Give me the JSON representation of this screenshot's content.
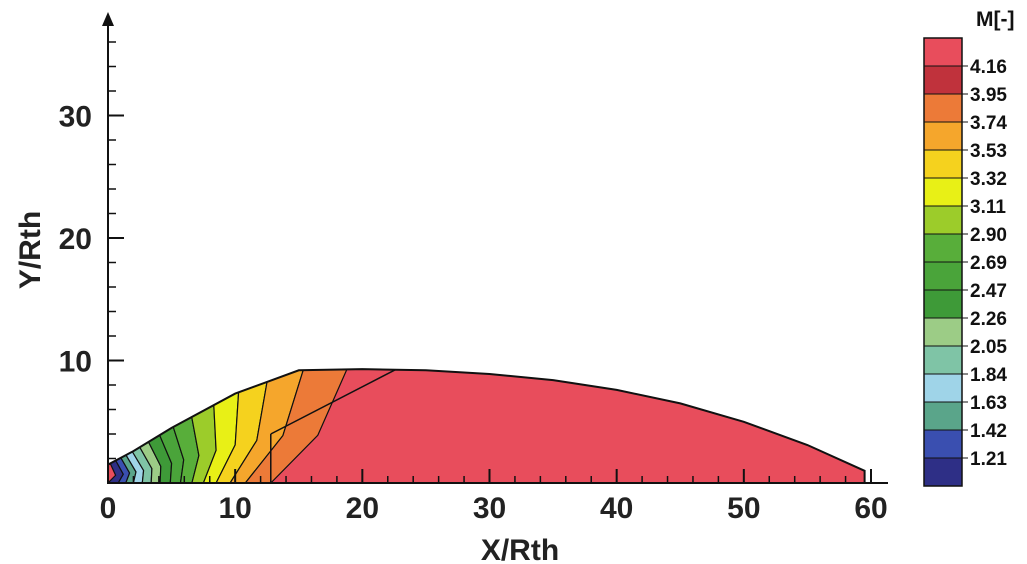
{
  "chart_data": {
    "type": "contour",
    "xlabel": "X/Rth",
    "ylabel": "Y/Rth",
    "xlim": [
      0,
      60
    ],
    "ylim": [
      0,
      37
    ],
    "x_ticks": [
      0,
      10,
      20,
      30,
      40,
      50,
      60
    ],
    "y_ticks": [
      10,
      20,
      30
    ],
    "x_tick_labels": [
      "0",
      "10",
      "20",
      "30",
      "40",
      "50",
      "60"
    ],
    "y_tick_labels": [
      "10",
      "20",
      "30"
    ],
    "grid": false,
    "legend": {
      "title": "M[-]",
      "placement": "right",
      "levels": [
        1.21,
        1.42,
        1.63,
        1.84,
        2.05,
        2.26,
        2.47,
        2.69,
        2.9,
        3.11,
        3.32,
        3.53,
        3.74,
        3.95,
        4.16
      ],
      "labels": [
        "1.21",
        "1.42",
        "1.63",
        "1.84",
        "2.05",
        "2.26",
        "2.47",
        "2.69",
        "2.90",
        "3.11",
        "3.32",
        "3.53",
        "3.74",
        "3.95",
        "4.16"
      ],
      "colors": [
        "#2e2f86",
        "#3a4fb0",
        "#5aa58a",
        "#9fd4e8",
        "#7fc4a6",
        "#9ccc86",
        "#3e9a38",
        "#4aa43a",
        "#58ae3a",
        "#9ccc2a",
        "#e8f016",
        "#f5d21e",
        "#f5a62c",
        "#ec7a38",
        "#c0323c",
        "#e84d5c"
      ]
    },
    "domain_boundary": {
      "x": [
        0,
        0,
        2,
        5,
        10,
        15,
        20,
        25,
        30,
        35,
        40,
        45,
        50,
        55,
        59.5,
        59.5
      ],
      "y": [
        0,
        1.5,
        2.6,
        4.5,
        7.3,
        9.2,
        9.3,
        9.2,
        8.9,
        8.4,
        7.6,
        6.5,
        5.0,
        3.1,
        1.0,
        0
      ]
    },
    "shock_line": {
      "x": [
        12.8,
        22.7
      ],
      "y": [
        4.0,
        9.3
      ]
    }
  }
}
